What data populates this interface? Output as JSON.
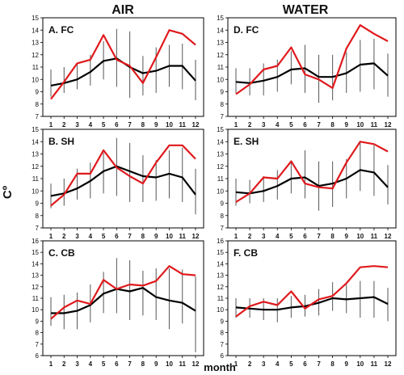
{
  "figure": {
    "col_titles": [
      "AIR",
      "WATER"
    ],
    "ylabel": "Cº",
    "xlabel": "month"
  },
  "chart_data": [
    {
      "type": "line",
      "title": "A. FC",
      "x": [
        1,
        2,
        3,
        4,
        5,
        6,
        7,
        8,
        9,
        10,
        11,
        12
      ],
      "ylim": [
        7,
        15
      ],
      "yticks": [
        7,
        8,
        9,
        10,
        11,
        12,
        13,
        14,
        15
      ],
      "grid": false,
      "series": [
        {
          "color": "#e0191c",
          "values": [
            8.4,
            9.8,
            11.3,
            11.6,
            13.6,
            11.6,
            11.1,
            9.7,
            11.8,
            14.0,
            13.7,
            12.8
          ]
        },
        {
          "color": "#000000",
          "values": [
            9.5,
            9.7,
            10.0,
            10.6,
            11.5,
            11.7,
            11.0,
            10.5,
            10.7,
            11.1,
            11.1,
            9.9
          ]
        }
      ],
      "ranges": [
        [
          8.6,
          10.8
        ],
        [
          8.9,
          11.0
        ],
        [
          9.2,
          11.3
        ],
        [
          9.5,
          12.0
        ],
        [
          10.0,
          13.1
        ],
        [
          9.4,
          14.1
        ],
        [
          8.5,
          13.9
        ],
        [
          8.7,
          11.9
        ],
        [
          8.9,
          12.6
        ],
        [
          9.4,
          12.8
        ],
        [
          9.2,
          12.9
        ],
        [
          8.3,
          11.6
        ]
      ]
    },
    {
      "type": "line",
      "title": "D. FC",
      "x": [
        1,
        2,
        3,
        4,
        5,
        6,
        7,
        8,
        9,
        10,
        11,
        12
      ],
      "ylim": [
        7,
        15
      ],
      "yticks": [
        7,
        8,
        9,
        10,
        11,
        12,
        13,
        14,
        15
      ],
      "grid": false,
      "series": [
        {
          "color": "#e0191c",
          "values": [
            8.8,
            9.6,
            10.8,
            11.1,
            12.6,
            10.4,
            10.0,
            9.3,
            12.5,
            14.4,
            13.7,
            13.1
          ]
        },
        {
          "color": "#000000",
          "values": [
            9.8,
            9.7,
            9.9,
            10.2,
            10.8,
            10.9,
            10.2,
            10.2,
            10.5,
            11.2,
            11.3,
            10.3
          ]
        }
      ],
      "ranges": [
        [
          8.9,
          10.9
        ],
        [
          8.7,
          10.9
        ],
        [
          8.7,
          11.3
        ],
        [
          9.0,
          11.6
        ],
        [
          9.6,
          12.3
        ],
        [
          8.9,
          12.8
        ],
        [
          8.1,
          12.0
        ],
        [
          8.3,
          12.0
        ],
        [
          8.9,
          12.2
        ],
        [
          9.0,
          13.2
        ],
        [
          9.2,
          13.3
        ],
        [
          8.6,
          12.1
        ]
      ]
    },
    {
      "type": "line",
      "title": "B. SH",
      "x": [
        1,
        2,
        3,
        4,
        5,
        6,
        7,
        8,
        9,
        10,
        11,
        12
      ],
      "ylim": [
        7,
        15
      ],
      "yticks": [
        7,
        8,
        9,
        10,
        11,
        12,
        13,
        14,
        15
      ],
      "grid": false,
      "series": [
        {
          "color": "#e0191c",
          "values": [
            8.8,
            9.7,
            11.4,
            11.4,
            13.3,
            11.9,
            11.2,
            10.6,
            12.3,
            13.7,
            13.7,
            12.6
          ]
        },
        {
          "color": "#000000",
          "values": [
            9.6,
            9.8,
            10.2,
            10.8,
            11.6,
            12.0,
            11.6,
            11.2,
            11.1,
            11.4,
            11.1,
            9.7
          ]
        }
      ],
      "ranges": [
        [
          8.6,
          10.6
        ],
        [
          8.8,
          11.0
        ],
        [
          9.3,
          11.8
        ],
        [
          9.4,
          12.3
        ],
        [
          9.8,
          13.1
        ],
        [
          9.6,
          14.3
        ],
        [
          9.1,
          13.9
        ],
        [
          9.1,
          12.9
        ],
        [
          9.2,
          12.5
        ],
        [
          9.4,
          13.3
        ],
        [
          9.1,
          13.5
        ],
        [
          8.1,
          11.8
        ]
      ]
    },
    {
      "type": "line",
      "title": "E. SH",
      "x": [
        1,
        2,
        3,
        4,
        5,
        6,
        7,
        8,
        9,
        10,
        11,
        12
      ],
      "ylim": [
        7,
        15
      ],
      "yticks": [
        7,
        8,
        9,
        10,
        11,
        12,
        13,
        14,
        15
      ],
      "grid": false,
      "series": [
        {
          "color": "#e0191c",
          "values": [
            9.1,
            9.8,
            11.1,
            11.0,
            12.4,
            10.6,
            10.3,
            10.2,
            12.3,
            14.0,
            13.8,
            13.2
          ]
        },
        {
          "color": "#000000",
          "values": [
            9.9,
            9.8,
            10.0,
            10.4,
            11.0,
            11.1,
            10.4,
            10.6,
            11.0,
            11.7,
            11.5,
            10.3
          ]
        }
      ],
      "ranges": [
        [
          8.8,
          11.0
        ],
        [
          9.0,
          10.9
        ],
        [
          9.1,
          11.2
        ],
        [
          9.3,
          11.7
        ],
        [
          9.8,
          12.4
        ],
        [
          9.4,
          13.3
        ],
        [
          8.4,
          12.4
        ],
        [
          8.7,
          12.4
        ],
        [
          9.4,
          12.6
        ],
        [
          10.0,
          13.9
        ],
        [
          9.6,
          13.7
        ],
        [
          8.9,
          12.1
        ]
      ]
    },
    {
      "type": "line",
      "title": "C. CB",
      "x": [
        1,
        2,
        3,
        4,
        5,
        6,
        7,
        8,
        9,
        10,
        11,
        12
      ],
      "ylim": [
        6,
        16
      ],
      "yticks": [
        6,
        7,
        8,
        9,
        10,
        11,
        12,
        13,
        14,
        15,
        16
      ],
      "grid": false,
      "series": [
        {
          "color": "#e0191c",
          "values": [
            9.2,
            10.2,
            10.8,
            10.5,
            12.6,
            11.8,
            12.2,
            12.1,
            12.5,
            13.8,
            13.1,
            13.0
          ]
        },
        {
          "color": "#000000",
          "values": [
            9.7,
            9.7,
            9.9,
            10.4,
            11.4,
            11.8,
            11.6,
            11.9,
            11.1,
            10.8,
            10.6,
            9.9
          ]
        }
      ],
      "ranges": [
        [
          8.6,
          11.1
        ],
        [
          8.3,
          11.3
        ],
        [
          8.3,
          11.5
        ],
        [
          8.9,
          12.2
        ],
        [
          9.7,
          13.3
        ],
        [
          9.7,
          14.5
        ],
        [
          9.1,
          14.3
        ],
        [
          9.5,
          13.4
        ],
        [
          9.1,
          13.6
        ],
        [
          8.3,
          13.6
        ],
        [
          8.8,
          13.5
        ],
        [
          6.3,
          12.9
        ]
      ]
    },
    {
      "type": "line",
      "title": "F. CB",
      "x": [
        1,
        2,
        3,
        4,
        5,
        6,
        7,
        8,
        9,
        10,
        11,
        12
      ],
      "ylim": [
        6,
        16
      ],
      "yticks": [
        6,
        7,
        8,
        9,
        10,
        11,
        12,
        13,
        14,
        15,
        16
      ],
      "grid": false,
      "series": [
        {
          "color": "#e0191c",
          "values": [
            9.4,
            10.3,
            10.7,
            10.4,
            11.6,
            10.1,
            10.9,
            11.2,
            12.3,
            13.7,
            13.8,
            13.7
          ]
        },
        {
          "color": "#000000",
          "values": [
            10.2,
            10.1,
            10.0,
            10.0,
            10.2,
            10.3,
            10.6,
            11.0,
            10.9,
            11.0,
            11.1,
            10.5
          ]
        }
      ],
      "ranges": [
        [
          9.3,
          11.0
        ],
        [
          9.3,
          11.0
        ],
        [
          9.1,
          11.0
        ],
        [
          8.9,
          11.0
        ],
        [
          9.3,
          11.2
        ],
        [
          9.4,
          11.3
        ],
        [
          9.5,
          11.8
        ],
        [
          9.9,
          12.4
        ],
        [
          9.7,
          12.2
        ],
        [
          9.3,
          12.5
        ],
        [
          9.3,
          12.5
        ],
        [
          9.0,
          11.9
        ]
      ]
    }
  ]
}
